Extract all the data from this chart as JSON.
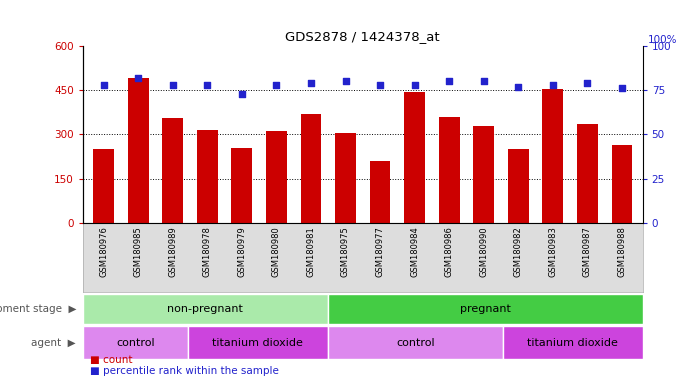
{
  "title": "GDS2878 / 1424378_at",
  "samples": [
    "GSM180976",
    "GSM180985",
    "GSM180989",
    "GSM180978",
    "GSM180979",
    "GSM180980",
    "GSM180981",
    "GSM180975",
    "GSM180977",
    "GSM180984",
    "GSM180986",
    "GSM180990",
    "GSM180982",
    "GSM180983",
    "GSM180987",
    "GSM180988"
  ],
  "counts": [
    250,
    490,
    355,
    315,
    255,
    310,
    370,
    305,
    210,
    445,
    360,
    330,
    250,
    455,
    335,
    265
  ],
  "percentile_ranks": [
    78,
    82,
    78,
    78,
    73,
    78,
    79,
    80,
    78,
    78,
    80,
    80,
    77,
    78,
    79,
    76
  ],
  "bar_color": "#cc0000",
  "dot_color": "#2222cc",
  "ylim_left": [
    0,
    600
  ],
  "ylim_right": [
    0,
    100
  ],
  "yticks_left": [
    0,
    150,
    300,
    450,
    600
  ],
  "yticks_right": [
    0,
    25,
    50,
    75,
    100
  ],
  "grid_values": [
    150,
    300,
    450
  ],
  "dev_stage_groups": [
    {
      "label": "non-pregnant",
      "start": 0,
      "end": 7,
      "color": "#aaeaaa"
    },
    {
      "label": "pregnant",
      "start": 7,
      "end": 16,
      "color": "#44cc44"
    }
  ],
  "agent_groups": [
    {
      "label": "control",
      "start": 0,
      "end": 3,
      "color": "#dd88ee"
    },
    {
      "label": "titanium dioxide",
      "start": 3,
      "end": 7,
      "color": "#cc44dd"
    },
    {
      "label": "control",
      "start": 7,
      "end": 12,
      "color": "#dd88ee"
    },
    {
      "label": "titanium dioxide",
      "start": 12,
      "end": 16,
      "color": "#cc44dd"
    }
  ],
  "legend_count_color": "#cc0000",
  "legend_dot_color": "#2222cc",
  "tick_label_color_left": "#cc0000",
  "tick_label_color_right": "#2222cc",
  "xtick_bg_color": "#dddddd",
  "left_label_color": "#555555"
}
